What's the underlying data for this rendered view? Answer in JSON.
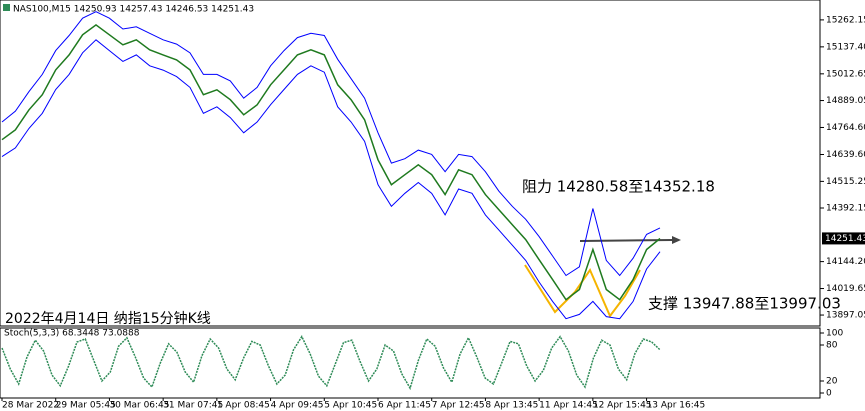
{
  "chart_data": [
    {
      "type": "line",
      "title": "NAS100,M15  14250.93 14257.43 14246.53 14251.43",
      "annotations": [
        "阻力 14280.58至14352.18",
        "支撑 13947.88至13997.03",
        "2022年4月14日 纳指15分钟K线"
      ],
      "last_price": 14251.43,
      "categories": [
        "28 Mar 2022",
        null,
        null,
        null,
        "29 Mar 05:45",
        null,
        null,
        null,
        "30 Mar 06:45",
        null,
        null,
        null,
        "31 Mar 07:45",
        null,
        null,
        null,
        "1 Apr 08:45",
        null,
        null,
        null,
        "4 Apr 09:45",
        null,
        null,
        null,
        "5 Apr 10:45",
        null,
        null,
        null,
        "6 Apr 11:45",
        null,
        null,
        null,
        "7 Apr 12:45",
        null,
        null,
        null,
        "8 Apr 13:45",
        null,
        null,
        null,
        "11 Apr 14:45",
        null,
        null,
        null,
        "12 Apr 15:45",
        null,
        null,
        null,
        "13 Apr 16:45",
        null
      ],
      "series": [
        {
          "color": "#1f7a1f",
          "values": [
            14708,
            14754,
            14846,
            14916,
            15031,
            15100,
            15193,
            15239,
            15193,
            15147,
            15170,
            15124,
            15100,
            15077,
            15031,
            14916,
            14939,
            14893,
            14823,
            14869,
            14962,
            15031,
            15100,
            15124,
            15100,
            14962,
            14893,
            14800,
            14615,
            14500,
            14546,
            14592,
            14546,
            14454,
            14569,
            14546,
            14454,
            14384,
            14315,
            14246,
            14153,
            14061,
            13968,
            14015,
            14200,
            14015,
            13968,
            14061,
            14200,
            14251
          ]
        },
        {
          "color": "#0000ff",
          "values": [
            14790,
            14840,
            14930,
            15010,
            15120,
            15190,
            15270,
            15300,
            15270,
            15220,
            15230,
            15200,
            15170,
            15150,
            15110,
            15010,
            15010,
            14980,
            14900,
            14950,
            15050,
            15120,
            15180,
            15200,
            15190,
            15080,
            14990,
            14900,
            14740,
            14600,
            14620,
            14660,
            14640,
            14560,
            14640,
            14630,
            14560,
            14470,
            14400,
            14340,
            14260,
            14170,
            14080,
            14120,
            14390,
            14150,
            14080,
            14160,
            14270,
            14300
          ]
        },
        {
          "color": "#0000ff",
          "values": [
            14630,
            14670,
            14760,
            14830,
            14940,
            15010,
            15110,
            15170,
            15120,
            15070,
            15100,
            15050,
            15030,
            15000,
            14950,
            14830,
            14860,
            14810,
            14740,
            14790,
            14870,
            14940,
            15010,
            15050,
            15020,
            14860,
            14790,
            14700,
            14500,
            14400,
            14460,
            14510,
            14460,
            14360,
            14480,
            14460,
            14360,
            14290,
            14220,
            14150,
            14050,
            13960,
            13880,
            13900,
            13960,
            13890,
            13880,
            13960,
            14110,
            14190
          ]
        }
      ],
      "ylim": [
        13851,
        15331
      ],
      "yticks": [
        15262.15,
        {
          "value": 15137.4,
          "label": "15137.40"
        },
        15012.65,
        14889.05,
        {
          "value": 14764.6,
          "label": "14764.60"
        },
        {
          "value": 14639.6,
          "label": "14639.60"
        },
        14515.25,
        14392.15,
        {
          "value": 14144.2,
          "label": "14144.20"
        },
        14019.65,
        13897.05
      ]
    },
    {
      "type": "line",
      "title": "Stoch(5,3,3) 68.3448 73.0888",
      "series": [
        {
          "color": "#2e8b57",
          "values": [
            75,
            40,
            15,
            60,
            88,
            70,
            30,
            12,
            45,
            85,
            90,
            55,
            20,
            35,
            78,
            92,
            60,
            25,
            10,
            50,
            82,
            68,
            35,
            18,
            62,
            90,
            75,
            40,
            22,
            58,
            86,
            80,
            45,
            15,
            30,
            72,
            94,
            65,
            28,
            12,
            48,
            84,
            88,
            52,
            20,
            40,
            80,
            70,
            32,
            8,
            55,
            90,
            78,
            42,
            18,
            65,
            92,
            60,
            25,
            15,
            50,
            86,
            82,
            45,
            20,
            38,
            75,
            94,
            70,
            30,
            10,
            58,
            88,
            80,
            40,
            22,
            66,
            90,
            85,
            72
          ]
        }
      ],
      "ylim": [
        0,
        100
      ],
      "yticks": [
        100,
        80,
        20,
        0
      ]
    }
  ]
}
